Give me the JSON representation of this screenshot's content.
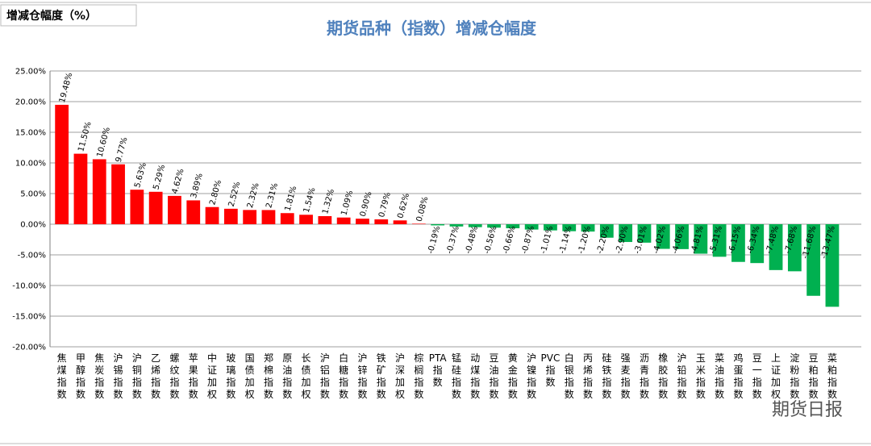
{
  "header_box": "增减仓幅度（%）",
  "watermark": "期货日报",
  "chart_data": {
    "type": "bar",
    "title": "期货品种（指数）增减仓幅度",
    "categories": [
      "焦煤指数",
      "甲醇指数",
      "焦炭指数",
      "沪锡指数",
      "沪铜指数",
      "乙烯指数",
      "螺纹指数",
      "苹果指数",
      "中证加权",
      "玻璃指数",
      "国债加权",
      "郑棉指数",
      "原油指数",
      "长债加权",
      "沪铝指数",
      "白糖指数",
      "沪锌指数",
      "铁矿指数",
      "沪深加权",
      "棕榈指数",
      "PTA指数",
      "锰硅指数",
      "动煤指数",
      "豆油指数",
      "黄金指数",
      "沪镍指数",
      "PVC指数",
      "白银指数",
      "丙烯指数",
      "硅铁指数",
      "强麦指数",
      "沥青指数",
      "橡胶指数",
      "沪铅指数",
      "玉米指数",
      "菜油指数",
      "鸡蛋指数",
      "豆一指数",
      "上证加权",
      "淀粉指数",
      "豆粕指数",
      "菜粕指数"
    ],
    "values": [
      19.48,
      11.5,
      10.6,
      9.77,
      5.63,
      5.29,
      4.62,
      3.89,
      2.8,
      2.52,
      2.32,
      2.31,
      1.81,
      1.54,
      1.32,
      1.09,
      0.9,
      0.79,
      0.62,
      0.08,
      -0.19,
      -0.37,
      -0.48,
      -0.56,
      -0.66,
      -0.87,
      -1.01,
      -1.14,
      -1.2,
      -2.2,
      -2.9,
      -3.01,
      -4.02,
      -4.06,
      -4.81,
      -5.31,
      -6.15,
      -6.34,
      -7.48,
      -7.68,
      -11.68,
      -13.47
    ],
    "value_labels": [
      "19.48%",
      "11.50%",
      "10.60%",
      "9.77%",
      "5.63%",
      "5.29%",
      "4.62%",
      "3.89%",
      "2.80%",
      "2.52%",
      "2.32%",
      "2.31%",
      "1.81%",
      "1.54%",
      "1.32%",
      "1.09%",
      "0.90%",
      "0.79%",
      "0.62%",
      "0.08%",
      "-0.19%",
      "-0.37%",
      "-0.48%",
      "-0.56%",
      "-0.66%",
      "-0.87%",
      "-1.01%",
      "-1.14%",
      "-1.20%",
      "-2.20%",
      "-2.90%",
      "-3.01%",
      "-4.02%",
      "-4.06%",
      "-4.81%",
      "-5.31%",
      "-6.15%",
      "-6.34%",
      "-7.48%",
      "-7.68%",
      "-11.68%",
      "-13.47%"
    ],
    "positive_color": "#ff0000",
    "negative_color": "#00b050",
    "ylim": [
      -20,
      25
    ],
    "yticks": [
      {
        "value": -20,
        "label": "-20.00%"
      },
      {
        "value": -15,
        "label": "-15.00%"
      },
      {
        "value": -10,
        "label": "-10.00%"
      },
      {
        "value": -5,
        "label": "-5.00%"
      },
      {
        "value": 0,
        "label": "0.00%"
      },
      {
        "value": 5,
        "label": "5.00%"
      },
      {
        "value": 10,
        "label": "10.00%"
      },
      {
        "value": 15,
        "label": "15.00%"
      },
      {
        "value": 20,
        "label": "20.00%"
      },
      {
        "value": 25,
        "label": "25.00%"
      }
    ],
    "grid": true
  }
}
